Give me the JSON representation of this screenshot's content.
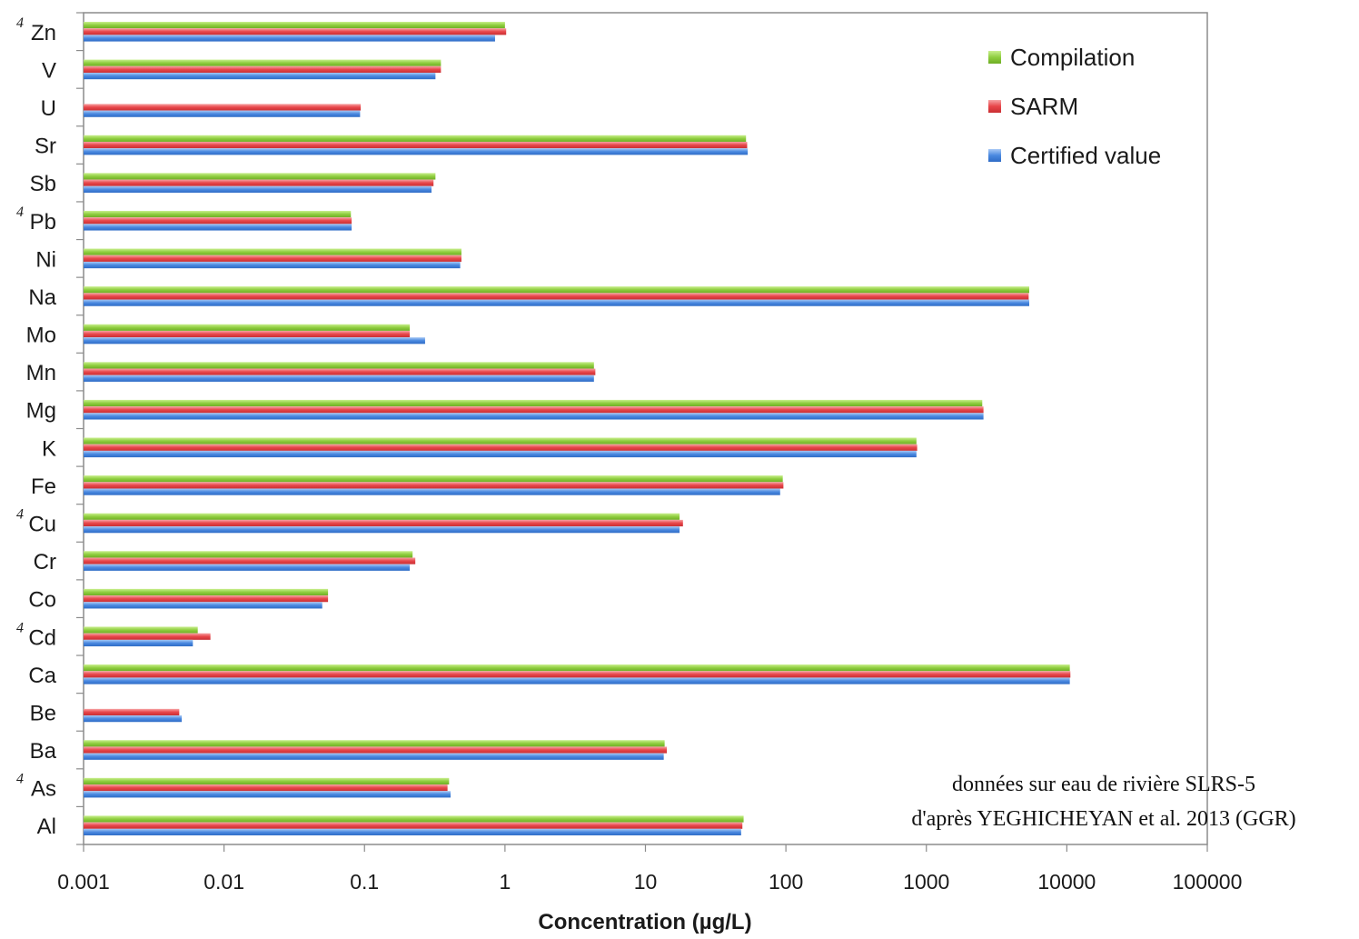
{
  "chart_data": {
    "type": "bar",
    "orientation": "horizontal",
    "xscale": "log",
    "xlim": [
      0.001,
      100000
    ],
    "xticks": [
      "0.001",
      "0.01",
      "0.1",
      "1",
      "10",
      "100",
      "1000",
      "10000",
      "100000"
    ],
    "xlabel": "Concentration (µg/L)",
    "grid": false,
    "legend_position": "top-right",
    "categories": [
      "Zn",
      "V",
      "U",
      "Sr",
      "Sb",
      "Pb",
      "Ni",
      "Na",
      "Mo",
      "Mn",
      "Mg",
      "K",
      "Fe",
      "Cu",
      "Cr",
      "Co",
      "Cd",
      "Ca",
      "Be",
      "Ba",
      "As",
      "Al"
    ],
    "flagged_categories": [
      "Zn",
      "Pb",
      "Cu",
      "Cd",
      "As"
    ],
    "flag_marker": "4",
    "series": [
      {
        "name": "Compilation",
        "color": "#8fce3f",
        "values": [
          1.0,
          0.35,
          null,
          52,
          0.32,
          0.08,
          0.49,
          5400,
          0.21,
          4.3,
          2500,
          850,
          95,
          17.5,
          0.22,
          0.055,
          0.0065,
          10500,
          null,
          13.7,
          0.4,
          50
        ]
      },
      {
        "name": "SARM",
        "color": "#e8464a",
        "values": [
          1.02,
          0.35,
          0.094,
          53,
          0.31,
          0.081,
          0.49,
          5350,
          0.21,
          4.4,
          2550,
          860,
          96,
          18.5,
          0.23,
          0.055,
          0.008,
          10600,
          0.0048,
          14.2,
          0.39,
          49
        ]
      },
      {
        "name": "Certified value",
        "color": "#4a89e0",
        "values": [
          0.85,
          0.32,
          0.093,
          53.5,
          0.3,
          0.081,
          0.48,
          5400,
          0.27,
          4.3,
          2550,
          850,
          91,
          17.5,
          0.21,
          0.05,
          0.006,
          10500,
          0.005,
          13.5,
          0.41,
          48
        ]
      }
    ]
  },
  "annotation": {
    "line1": "données sur eau de rivière SLRS-5",
    "line2": "d'après YEGHICHEYAN et al. 2013 (GGR)"
  }
}
